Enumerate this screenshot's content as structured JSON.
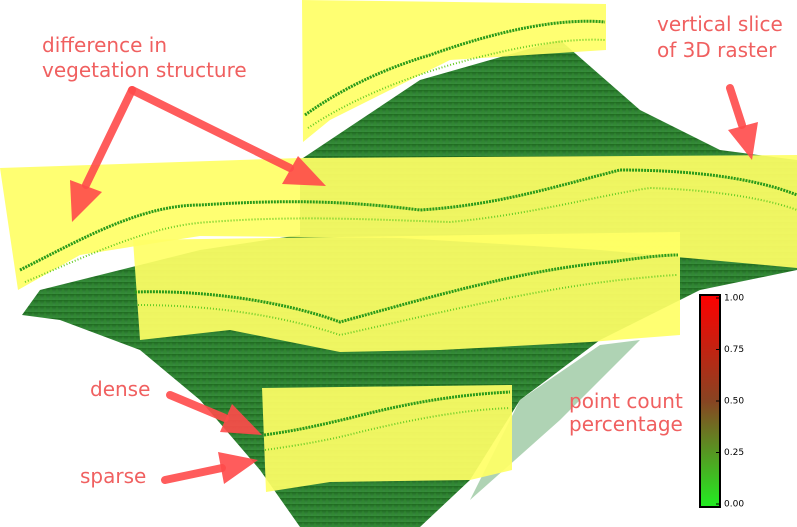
{
  "annotations": [
    {
      "lines": [
        "difference in",
        "vegetation structure"
      ]
    },
    {
      "lines": [
        "vertical slice",
        "of 3D raster"
      ]
    },
    {
      "lines": [
        "dense"
      ]
    },
    {
      "lines": [
        "sparse"
      ]
    }
  ],
  "colorbar": {
    "title": [
      "point count",
      "percentage"
    ],
    "range": [
      0,
      1
    ],
    "colors": [
      "#22ee22",
      "#884422",
      "#ff0000"
    ],
    "ticks": [
      {
        "value": 1,
        "label": "1.00"
      },
      {
        "value": 0.75,
        "label": "0.75"
      },
      {
        "value": 0.5,
        "label": "0.50"
      },
      {
        "value": 0.25,
        "label": "0.25"
      },
      {
        "value": 0,
        "label": "0.00"
      }
    ]
  }
}
